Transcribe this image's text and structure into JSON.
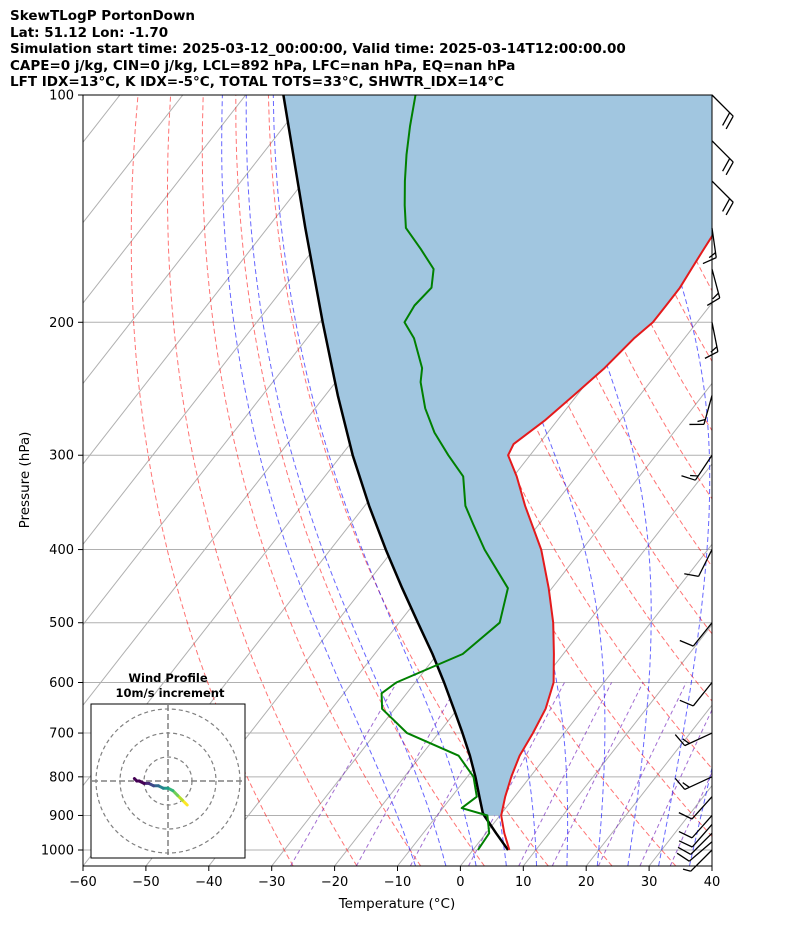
{
  "chart_data": {
    "type": "skewt",
    "title_lines": [
      "SkewTLogP PortonDown",
      "Lat: 51.12   Lon: -1.70",
      "Simulation start time: 2025-03-12_00:00:00, Valid time: 2025-03-14T12:00:00.00",
      "CAPE=0 j/kg, CIN=0 j/kg, LCL=892 hPa, LFC=nan hPa, EQ=nan hPa",
      "LFT IDX=13°C, K IDX=-5°C, TOTAL TOTS=33°C, SHWTR_IDX=14°C"
    ],
    "xlabel": "Temperature (°C)",
    "ylabel": "Pressure (hPa)",
    "xlim": [
      -60,
      40
    ],
    "ylim": [
      1050,
      100
    ],
    "y_scale": "log",
    "xticks": [
      -60,
      -50,
      -40,
      -30,
      -20,
      -10,
      0,
      10,
      20,
      30,
      40
    ],
    "yticks": [
      1000,
      900,
      800,
      700,
      600,
      500,
      400,
      300,
      200,
      100
    ],
    "grid": true,
    "temperature": {
      "color": "#e41a1c",
      "pressure": [
        1000,
        950,
        900,
        850,
        800,
        750,
        700,
        650,
        600,
        550,
        500,
        450,
        400,
        350,
        320,
        300,
        290,
        270,
        250,
        230,
        210,
        200,
        190,
        180,
        170,
        160,
        150,
        140,
        130,
        120,
        110,
        100
      ],
      "values": [
        5.8,
        2.9,
        0.2,
        -1.5,
        -3.0,
        -4.3,
        -5.0,
        -6.0,
        -8.0,
        -11.5,
        -15.5,
        -20.5,
        -26.5,
        -34.5,
        -39.5,
        -43.5,
        -44.0,
        -42.0,
        -40.5,
        -39.0,
        -38.0,
        -37.0,
        -37.0,
        -37.0,
        -37.5,
        -38.0,
        -38.5,
        -38.0,
        -41.0,
        -45.0,
        -49.0,
        -53.0
      ]
    },
    "dewpoint": {
      "color": "#008000",
      "pressure": [
        1000,
        950,
        900,
        880,
        850,
        800,
        750,
        700,
        650,
        620,
        600,
        550,
        500,
        450,
        400,
        370,
        350,
        320,
        300,
        280,
        260,
        240,
        230,
        210,
        200,
        190,
        180,
        170,
        160,
        150,
        140,
        130,
        120,
        110,
        100
      ],
      "values": [
        0.8,
        0.5,
        -2.0,
        -7.0,
        -6.0,
        -9.0,
        -14.0,
        -25.0,
        -32.0,
        -34.0,
        -33.0,
        -26.0,
        -24.0,
        -27.0,
        -35.5,
        -40.5,
        -44.0,
        -48.0,
        -53.0,
        -58.0,
        -62.5,
        -66.5,
        -68.0,
        -73.0,
        -76.5,
        -77.0,
        -76.5,
        -78.5,
        -83.0,
        -88.0,
        -91.0,
        -94.0,
        -97.0,
        -100.0,
        -103.0
      ]
    },
    "parcel": {
      "color": "#000000",
      "pressure": [
        1000,
        950,
        900,
        892,
        850,
        800,
        750,
        700,
        650,
        600,
        550,
        500,
        450,
        400,
        350,
        300,
        250,
        200,
        150,
        100
      ],
      "values": [
        5.6,
        1.6,
        -2.5,
        -3.1,
        -5.6,
        -8.7,
        -12.2,
        -16.2,
        -20.6,
        -25.4,
        -30.8,
        -37.0,
        -43.8,
        -51.2,
        -59.3,
        -68.2,
        -78.0,
        -89.5,
        -104.0,
        -124.0
      ]
    },
    "cin_area_color": "#a1c6e0",
    "dry_adiabats_color": "#ff0000",
    "moist_adiabats_color": "#0000ff",
    "mixing_lines_color": "#7b2fbf",
    "wind_barbs": [
      {
        "pressure": 1000,
        "u": 6,
        "v": 6
      },
      {
        "pressure": 975,
        "u": 7,
        "v": 6
      },
      {
        "pressure": 950,
        "u": 7,
        "v": 7
      },
      {
        "pressure": 925,
        "u": 7,
        "v": 8
      },
      {
        "pressure": 900,
        "u": 8,
        "v": 9
      },
      {
        "pressure": 850,
        "u": 9,
        "v": 10
      },
      {
        "pressure": 800,
        "u": 13,
        "v": 6
      },
      {
        "pressure": 700,
        "u": 13,
        "v": 6
      },
      {
        "pressure": 600,
        "u": 8,
        "v": 10
      },
      {
        "pressure": 500,
        "u": 8,
        "v": 10
      },
      {
        "pressure": 400,
        "u": 6,
        "v": 12
      },
      {
        "pressure": 300,
        "u": 8,
        "v": 12
      },
      {
        "pressure": 250,
        "u": 5,
        "v": 18
      },
      {
        "pressure": 200,
        "u": -3,
        "v": 15
      },
      {
        "pressure": 170,
        "u": -4,
        "v": 15
      },
      {
        "pressure": 150,
        "u": -2,
        "v": 14
      },
      {
        "pressure": 130,
        "u": -14,
        "v": 14
      },
      {
        "pressure": 115,
        "u": -14,
        "v": 14
      },
      {
        "pressure": 100,
        "u": -14,
        "v": 14
      }
    ],
    "hodograph": {
      "title": "Wind Profile",
      "subtitle": "10m/s increment",
      "ring_increment": 10,
      "u": [
        8,
        6,
        4,
        2,
        0,
        -2,
        -4,
        -6,
        -8,
        -10,
        -12,
        -13,
        -14
      ],
      "v": [
        -10,
        -8,
        -6,
        -4,
        -3,
        -3,
        -2,
        -2,
        -1,
        -1,
        0,
        0,
        1
      ]
    }
  }
}
